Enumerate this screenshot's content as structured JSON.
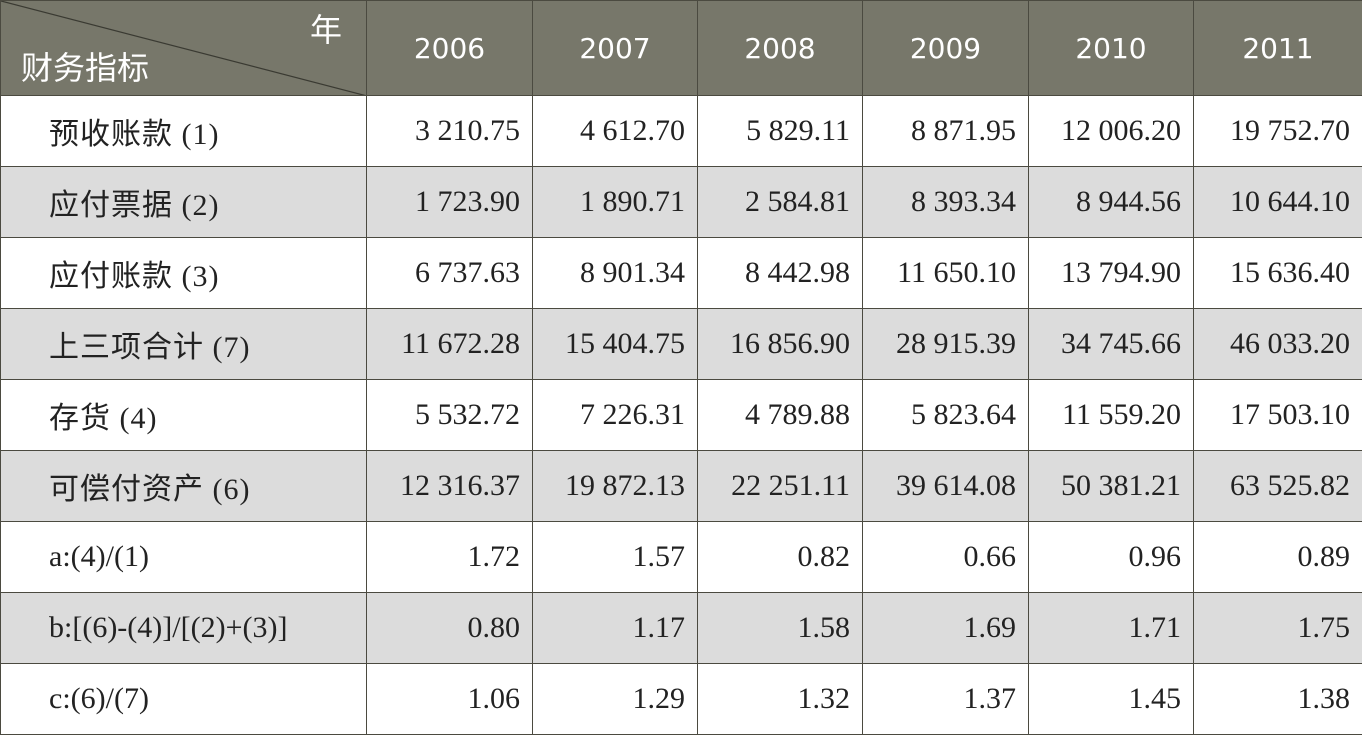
{
  "table": {
    "corner_top": "年",
    "corner_bottom": "财务指标",
    "years": [
      "2006",
      "2007",
      "2008",
      "2009",
      "2010",
      "2011"
    ],
    "rows": [
      {
        "label": "预收账款 (1)",
        "values": [
          "3 210.75",
          "4 612.70",
          "5 829.11",
          "8 871.95",
          "12 006.20",
          "19 752.70"
        ]
      },
      {
        "label": "应付票据 (2)",
        "values": [
          "1 723.90",
          "1 890.71",
          "2 584.81",
          "8 393.34",
          "8 944.56",
          "10 644.10"
        ]
      },
      {
        "label": "应付账款 (3)",
        "values": [
          "6 737.63",
          "8 901.34",
          "8 442.98",
          "11 650.10",
          "13 794.90",
          "15 636.40"
        ]
      },
      {
        "label": "上三项合计 (7)",
        "values": [
          "11 672.28",
          "15 404.75",
          "16 856.90",
          "28 915.39",
          "34 745.66",
          "46 033.20"
        ]
      },
      {
        "label": "存货 (4)",
        "values": [
          "5 532.72",
          "7 226.31",
          "4 789.88",
          "5 823.64",
          "11 559.20",
          "17 503.10"
        ]
      },
      {
        "label": "可偿付资产 (6)",
        "values": [
          "12 316.37",
          "19 872.13",
          "22 251.11",
          "39 614.08",
          "50 381.21",
          "63 525.82"
        ]
      },
      {
        "label": "a:(4)/(1)",
        "values": [
          "1.72",
          "1.57",
          "0.82",
          "0.66",
          "0.96",
          "0.89"
        ]
      },
      {
        "label": "b:[(6)-(4)]/[(2)+(3)]",
        "values": [
          "0.80",
          "1.17",
          "1.58",
          "1.69",
          "1.71",
          "1.75"
        ]
      },
      {
        "label": "c:(6)/(7)",
        "values": [
          "1.06",
          "1.29",
          "1.32",
          "1.37",
          "1.45",
          "1.38"
        ]
      }
    ]
  },
  "colors": {
    "header_bg": "#77776a",
    "header_text": "#ffffff",
    "shaded_row_bg": "#dcdcdc",
    "border": "#4b4a40"
  }
}
